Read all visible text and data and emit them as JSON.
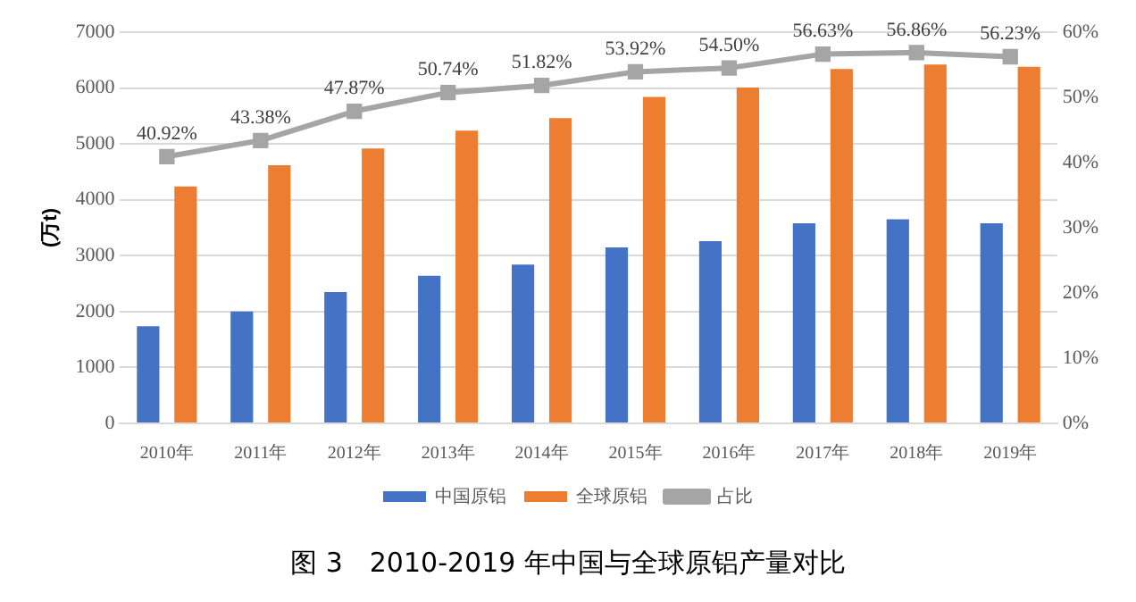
{
  "chart_data": {
    "type": "bar",
    "title": "图 3　2010-2019 年中国与全球原铝产量对比",
    "ylabel": "(万t)",
    "categories": [
      "2010年",
      "2011年",
      "2012年",
      "2013年",
      "2014年",
      "2015年",
      "2016年",
      "2017年",
      "2018年",
      "2019年"
    ],
    "series": [
      {
        "name": "中国原铝",
        "color": "#4472c4",
        "values": [
          1740,
          2000,
          2350,
          2640,
          2840,
          3150,
          3260,
          3580,
          3650,
          3580
        ]
      },
      {
        "name": "全球原铝",
        "color": "#ed7d31",
        "values": [
          4240,
          4620,
          4920,
          5240,
          5460,
          5840,
          6010,
          6340,
          6420,
          6380
        ]
      },
      {
        "name": "占比",
        "type": "line",
        "axis": "y2",
        "color": "#a5a5a5",
        "marker": "square",
        "values": [
          40.92,
          43.38,
          47.87,
          50.74,
          51.82,
          53.92,
          54.5,
          56.63,
          56.86,
          56.23
        ],
        "value_labels": [
          "40.92%",
          "43.38%",
          "47.87%",
          "50.74%",
          "51.82%",
          "53.92%",
          "54.50%",
          "56.63%",
          "56.86%",
          "56.23%"
        ]
      }
    ],
    "ylim": [
      0,
      7000
    ],
    "yticks": [
      0,
      1000,
      2000,
      3000,
      4000,
      5000,
      6000,
      7000
    ],
    "y2lim": [
      0,
      60
    ],
    "y2ticks": [
      {
        "value": 0,
        "label": "0%"
      },
      {
        "value": 10,
        "label": "10%"
      },
      {
        "value": 20,
        "label": "20%"
      },
      {
        "value": 30,
        "label": "30%"
      },
      {
        "value": 40,
        "label": "40%"
      },
      {
        "value": 50,
        "label": "50%"
      },
      {
        "value": 60,
        "label": "60%"
      }
    ],
    "grid": "y",
    "legend": "bottom"
  }
}
